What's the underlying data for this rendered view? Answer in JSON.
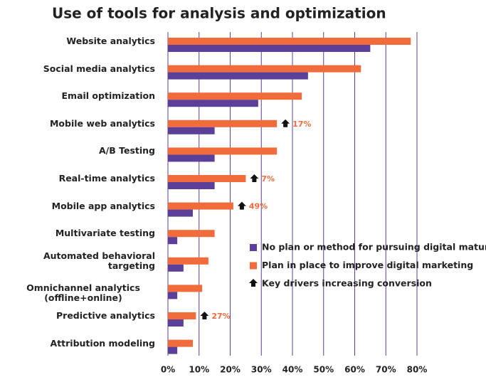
{
  "chart_data": {
    "type": "bar",
    "orientation": "horizontal",
    "title": "Use of tools for analysis and optimization",
    "categories": [
      "Website analytics",
      "Social media analytics",
      "Email optimization",
      "Mobile web analytics",
      "A/B Testing",
      "Real-time analytics",
      "Mobile app analytics",
      "Multivariate testing",
      "Automated behavioral targeting",
      "Omnichannel analytics\n(offline+online)",
      "Predictive analytics",
      "Attribution modeling"
    ],
    "series": [
      {
        "name": "Plan in place to improve digital marketing",
        "color": "#f26b3a",
        "values": [
          78,
          62,
          43,
          35,
          35,
          25,
          21,
          15,
          13,
          11,
          9,
          8
        ]
      },
      {
        "name": "No plan or method for pursuing digital maturity",
        "color": "#5b3f99",
        "values": [
          65,
          45,
          29,
          15,
          15,
          15,
          8,
          3,
          5,
          3,
          5,
          3
        ]
      }
    ],
    "xlim": [
      0,
      80
    ],
    "xticks": [
      {
        "value": 0,
        "label": "0%"
      },
      {
        "value": 10,
        "label": "10%"
      },
      {
        "value": 20,
        "label": "20%"
      },
      {
        "value": 30,
        "label": "30%"
      },
      {
        "value": 40,
        "label": "40%"
      },
      {
        "value": 50,
        "label": "50%"
      },
      {
        "value": 60,
        "label": "60%"
      },
      {
        "value": 70,
        "label": "70%"
      },
      {
        "value": 80,
        "label": "80%"
      }
    ],
    "grid": true,
    "grid_color": "#5b3f99",
    "annotation_key": "Key drivers increasing conversion",
    "annotations": [
      {
        "category": "Mobile web analytics",
        "text": "17%"
      },
      {
        "category": "Real-time analytics",
        "text": "7%"
      },
      {
        "category": "Mobile app analytics",
        "text": "49%"
      },
      {
        "category": "Predictive analytics",
        "text": "27%"
      }
    ]
  }
}
